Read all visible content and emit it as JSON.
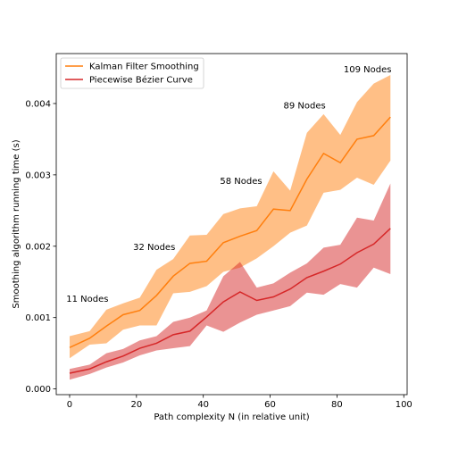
{
  "chart_data": {
    "type": "line",
    "xlabel": "Path complexity N (in relative unit)",
    "ylabel": "Smoothing algorithm running time (s)",
    "xlim": [
      -4,
      101
    ],
    "ylim": [
      -8e-05,
      0.0047
    ],
    "xticks": [
      0,
      20,
      40,
      60,
      80,
      100
    ],
    "yticks": [
      0,
      0.001,
      0.002,
      0.003,
      0.004
    ],
    "xtick_labels": [
      "0",
      "20",
      "40",
      "60",
      "80",
      "100"
    ],
    "ytick_labels": [
      "0.000",
      "0.001",
      "0.002",
      "0.003",
      "0.004"
    ],
    "x": [
      0,
      6,
      11,
      16,
      21,
      26,
      31,
      36,
      41,
      46,
      51,
      56,
      61,
      66,
      71,
      76,
      81,
      86,
      91,
      96
    ],
    "legend_position": "upper left",
    "series": [
      {
        "name": "Kalman Filter Smoothing",
        "color": "#ff7f0e",
        "fill_color": "#ff7f0e",
        "values": [
          0.00058,
          0.00071,
          0.00088,
          0.00104,
          0.0011,
          0.00131,
          0.00158,
          0.00176,
          0.00179,
          0.00205,
          0.00214,
          0.00222,
          0.00252,
          0.0025,
          0.00294,
          0.0033,
          0.00317,
          0.0035,
          0.00355,
          0.00381
        ],
        "upper": [
          0.00074,
          0.00081,
          0.00111,
          0.0012,
          0.00128,
          0.00167,
          0.00182,
          0.00215,
          0.00216,
          0.00245,
          0.00253,
          0.00256,
          0.00305,
          0.00278,
          0.00359,
          0.00385,
          0.00356,
          0.00402,
          0.00428,
          0.0044
        ],
        "lower": [
          0.00043,
          0.00062,
          0.00064,
          0.00083,
          0.00089,
          0.00089,
          0.00134,
          0.00136,
          0.00144,
          0.00164,
          0.0017,
          0.00183,
          0.002,
          0.00219,
          0.00229,
          0.00275,
          0.00279,
          0.00296,
          0.00286,
          0.0032
        ]
      },
      {
        "name": "Piecewise Bézier Curve",
        "color": "#d62728",
        "fill_color": "#d62728",
        "values": [
          0.00022,
          0.00028,
          0.00038,
          0.00046,
          0.00057,
          0.00064,
          0.00076,
          0.00081,
          0.00101,
          0.00122,
          0.00136,
          0.00124,
          0.00129,
          0.0014,
          0.00156,
          0.00165,
          0.00175,
          0.00191,
          0.00203,
          0.00225
        ],
        "upper": [
          0.00028,
          0.00034,
          0.0005,
          0.00056,
          0.00068,
          0.00074,
          0.00094,
          0.001,
          0.0011,
          0.00158,
          0.00178,
          0.00142,
          0.00148,
          0.00163,
          0.00176,
          0.00198,
          0.00202,
          0.0024,
          0.00236,
          0.00288
        ],
        "lower": [
          0.00013,
          0.00021,
          0.0003,
          0.00037,
          0.00047,
          0.00054,
          0.00057,
          0.0006,
          0.00089,
          0.0008,
          0.00093,
          0.00104,
          0.0011,
          0.00116,
          0.00135,
          0.00132,
          0.00147,
          0.00142,
          0.0017,
          0.00161
        ]
      }
    ],
    "annotations": [
      {
        "text": "11 Nodes",
        "x": -1,
        "y": 0.00122
      },
      {
        "text": "32 Nodes",
        "x": 19,
        "y": 0.00195
      },
      {
        "text": "58 Nodes",
        "x": 45,
        "y": 0.00287
      },
      {
        "text": "89 Nodes",
        "x": 64,
        "y": 0.00393
      },
      {
        "text": "109 Nodes",
        "x": 82,
        "y": 0.00444
      }
    ]
  }
}
